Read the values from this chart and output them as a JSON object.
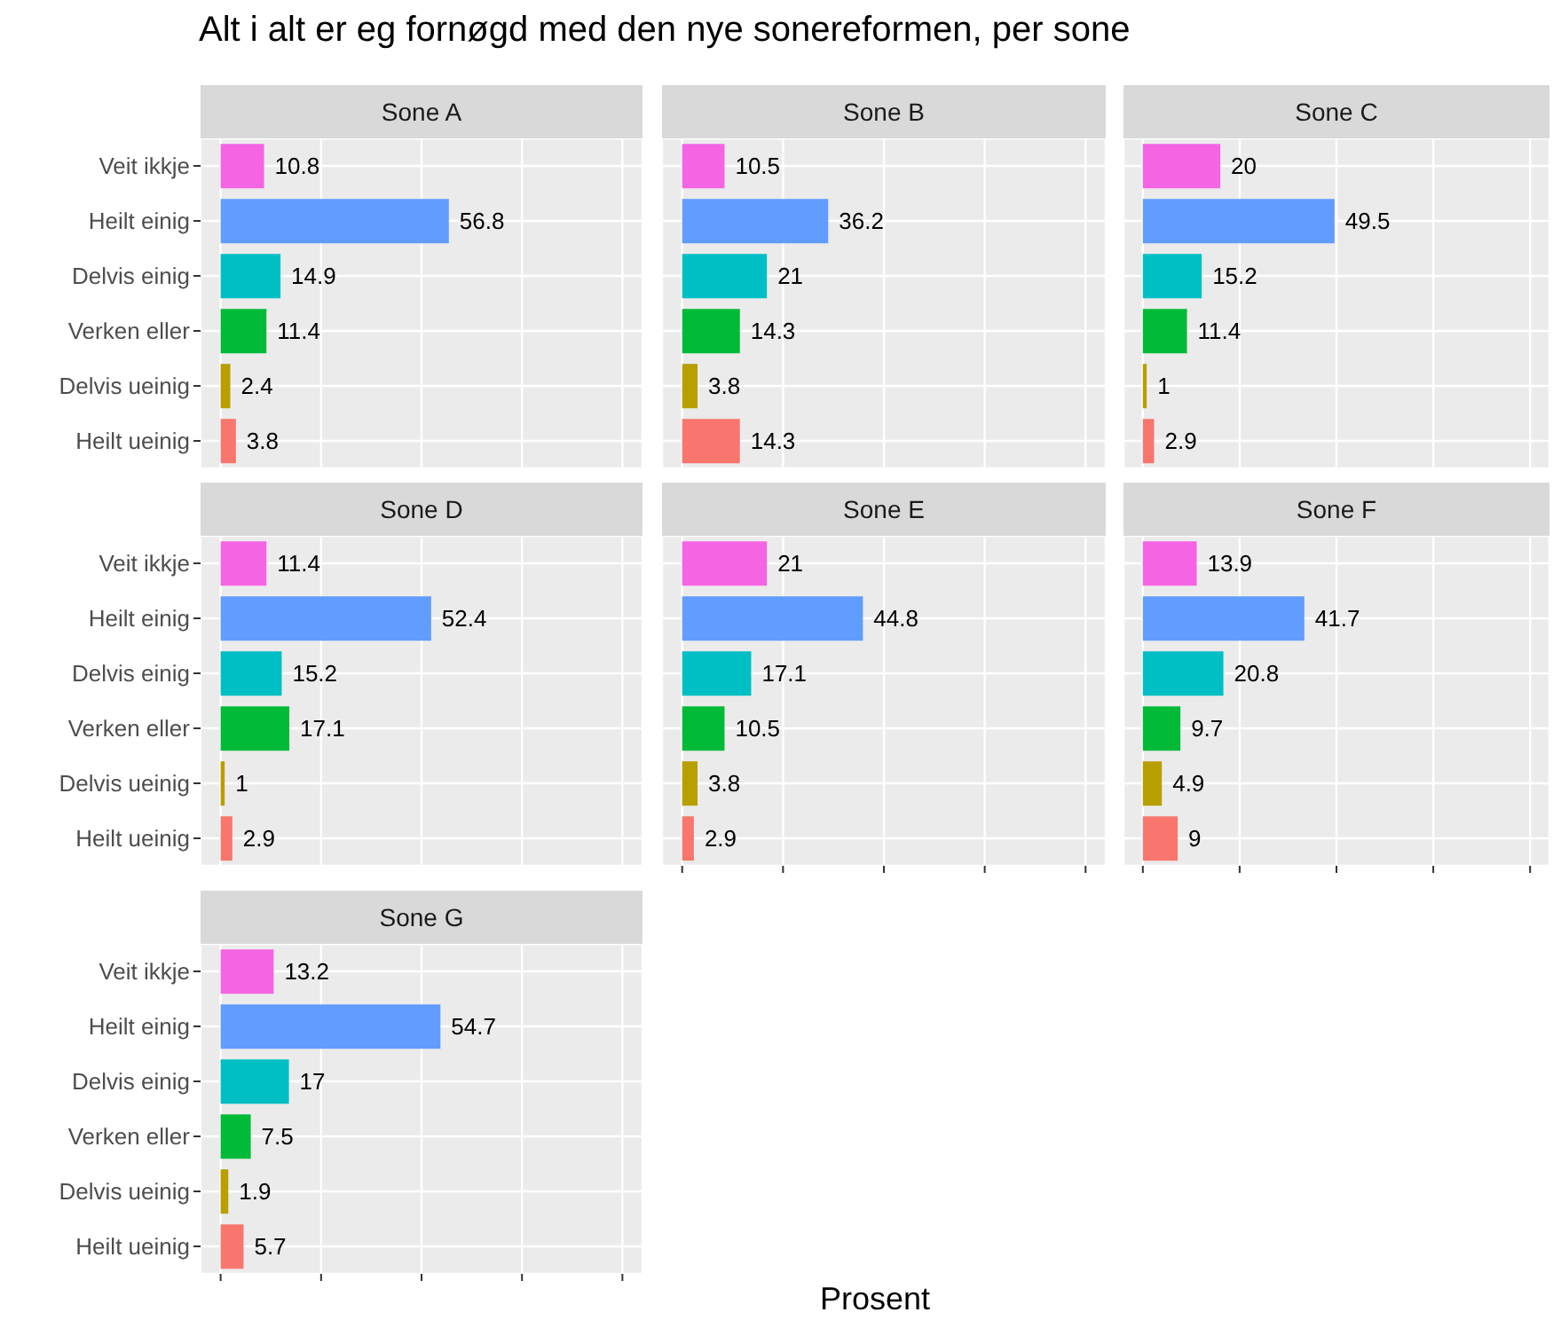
{
  "chart_data": [
    {
      "type": "bar",
      "orientation": "horizontal",
      "title": "Sone A",
      "annotations": [
        "Alt i alt er eg fornøgd med den nye sonereformen, per sone"
      ],
      "categories": [
        "Veit ikkje",
        "Heilt einig",
        "Delvis einig",
        "Verken eller",
        "Delvis ueinig",
        "Heilt ueinig"
      ],
      "values": [
        10.8,
        56.8,
        14.9,
        11.4,
        2.4,
        3.8
      ],
      "colors": [
        "#f564e3",
        "#619cff",
        "#00bfc4",
        "#00ba38",
        "#b79f00",
        "#f8766d"
      ],
      "data_labels": true,
      "grid": true,
      "tick_labels": "y",
      "xlim": [
        -5,
        105
      ],
      "xticks": [
        {
          "value": 0,
          "label": null
        },
        {
          "value": 25,
          "label": null
        },
        {
          "value": 50,
          "label": null
        },
        {
          "value": 75,
          "label": null
        },
        {
          "value": 100,
          "label": null
        }
      ]
    },
    {
      "type": "bar",
      "orientation": "horizontal",
      "title": "Sone B",
      "categories": [
        null,
        null,
        null,
        null,
        null,
        null
      ],
      "values": [
        10.5,
        36.2,
        21,
        14.3,
        3.8,
        14.3
      ],
      "colors": [
        "#f564e3",
        "#619cff",
        "#00bfc4",
        "#00ba38",
        "#b79f00",
        "#f8766d"
      ],
      "data_labels": true,
      "grid": true,
      "tick_labels": false,
      "xlim": [
        -5,
        105
      ],
      "xticks": [
        {
          "value": 0,
          "label": null
        },
        {
          "value": 25,
          "label": null
        },
        {
          "value": 50,
          "label": null
        },
        {
          "value": 75,
          "label": null
        },
        {
          "value": 100,
          "label": null
        }
      ]
    },
    {
      "type": "bar",
      "orientation": "horizontal",
      "title": "Sone C",
      "categories": [
        null,
        null,
        null,
        null,
        null,
        null
      ],
      "values": [
        20,
        49.5,
        15.2,
        11.4,
        1,
        2.9
      ],
      "colors": [
        "#f564e3",
        "#619cff",
        "#00bfc4",
        "#00ba38",
        "#b79f00",
        "#f8766d"
      ],
      "data_labels": true,
      "grid": true,
      "tick_labels": false,
      "xlim": [
        -5,
        105
      ],
      "xticks": [
        {
          "value": 0,
          "label": null
        },
        {
          "value": 25,
          "label": null
        },
        {
          "value": 50,
          "label": null
        },
        {
          "value": 75,
          "label": null
        },
        {
          "value": 100,
          "label": null
        }
      ]
    },
    {
      "type": "bar",
      "orientation": "horizontal",
      "title": "Sone D",
      "categories": [
        "Veit ikkje",
        "Heilt einig",
        "Delvis einig",
        "Verken eller",
        "Delvis ueinig",
        "Heilt ueinig"
      ],
      "values": [
        11.4,
        52.4,
        15.2,
        17.1,
        1,
        2.9
      ],
      "colors": [
        "#f564e3",
        "#619cff",
        "#00bfc4",
        "#00ba38",
        "#b79f00",
        "#f8766d"
      ],
      "data_labels": true,
      "grid": true,
      "tick_labels": "y",
      "xlim": [
        -5,
        105
      ],
      "xticks": [
        {
          "value": 0,
          "label": null
        },
        {
          "value": 25,
          "label": null
        },
        {
          "value": 50,
          "label": null
        },
        {
          "value": 75,
          "label": null
        },
        {
          "value": 100,
          "label": null
        }
      ]
    },
    {
      "type": "bar",
      "orientation": "horizontal",
      "title": "Sone E",
      "categories": [
        null,
        null,
        null,
        null,
        null,
        null
      ],
      "values": [
        21,
        44.8,
        17.1,
        10.5,
        3.8,
        2.9
      ],
      "colors": [
        "#f564e3",
        "#619cff",
        "#00bfc4",
        "#00ba38",
        "#b79f00",
        "#f8766d"
      ],
      "data_labels": true,
      "grid": true,
      "tick_labels": false,
      "xlim": [
        -5,
        105
      ],
      "xticks": [
        {
          "value": 0,
          "label": null
        },
        {
          "value": 25,
          "label": null
        },
        {
          "value": 50,
          "label": null
        },
        {
          "value": 75,
          "label": null
        },
        {
          "value": 100,
          "label": null
        }
      ]
    },
    {
      "type": "bar",
      "orientation": "horizontal",
      "title": "Sone F",
      "categories": [
        null,
        null,
        null,
        null,
        null,
        null
      ],
      "values": [
        13.9,
        41.7,
        20.8,
        9.7,
        4.9,
        9
      ],
      "colors": [
        "#f564e3",
        "#619cff",
        "#00bfc4",
        "#00ba38",
        "#b79f00",
        "#f8766d"
      ],
      "data_labels": true,
      "grid": true,
      "tick_labels": false,
      "xlim": [
        -5,
        105
      ],
      "xticks": [
        {
          "value": 0,
          "label": null
        },
        {
          "value": 25,
          "label": null
        },
        {
          "value": 50,
          "label": null
        },
        {
          "value": 75,
          "label": null
        },
        {
          "value": 100,
          "label": null
        }
      ]
    },
    {
      "type": "bar",
      "orientation": "horizontal",
      "title": "Sone G",
      "xlabel": "Prosent",
      "categories": [
        "Veit ikkje",
        "Heilt einig",
        "Delvis einig",
        "Verken eller",
        "Delvis ueinig",
        "Heilt ueinig"
      ],
      "values": [
        13.2,
        54.7,
        17,
        7.5,
        1.9,
        5.7
      ],
      "colors": [
        "#f564e3",
        "#619cff",
        "#00bfc4",
        "#00ba38",
        "#b79f00",
        "#f8766d"
      ],
      "data_labels": true,
      "grid": true,
      "tick_labels": "y",
      "xlim": [
        -5,
        105
      ],
      "xticks": [
        {
          "value": 0,
          "label": null
        },
        {
          "value": 25,
          "label": null
        },
        {
          "value": 50,
          "label": null
        },
        {
          "value": 75,
          "label": null
        },
        {
          "value": 100,
          "label": null
        }
      ]
    }
  ]
}
